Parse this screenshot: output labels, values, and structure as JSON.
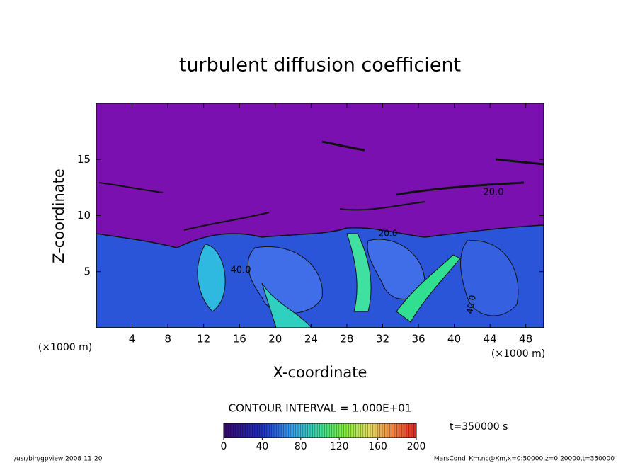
{
  "chart_data": {
    "type": "contour",
    "title": "turbulent diffusion coefficient",
    "xlabel": "X-coordinate",
    "ylabel": "Z-coordinate",
    "x_unit_label": "(×1000 m)",
    "xlim": [
      0,
      50
    ],
    "xticks": [
      4,
      8,
      12,
      16,
      20,
      24,
      28,
      32,
      36,
      40,
      44,
      48
    ],
    "ylim": [
      0,
      20
    ],
    "yticks": [
      5,
      10,
      15
    ],
    "contour_labels": [
      "40.0",
      "20.0",
      "20.0",
      "40.0"
    ],
    "contour_interval_text": "CONTOUR INTERVAL = 1.000E+01",
    "colorbar": {
      "lim": [
        0,
        200
      ],
      "ticks": [
        0,
        40,
        80,
        120,
        160,
        200
      ]
    },
    "time_text": "t=350000 s",
    "footer_left": "/usr/bin/gpview   2008-11-20",
    "footer_right": "MarsCond_Km.nc@Km,x=0:50000,z=0:20000,t=350000"
  }
}
